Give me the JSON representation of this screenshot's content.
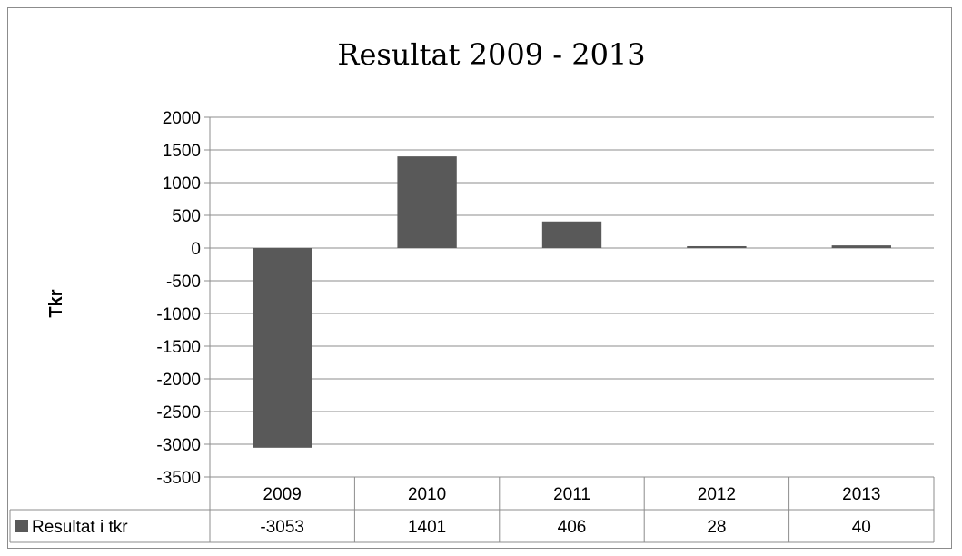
{
  "chart_data": {
    "type": "bar",
    "title": "Resultat 2009 - 2013",
    "xlabel": "",
    "ylabel": "Tkr",
    "categories": [
      "2009",
      "2010",
      "2011",
      "2012",
      "2013"
    ],
    "series": [
      {
        "name": "Resultat i tkr",
        "values": [
          -3053,
          1401,
          406,
          28,
          40
        ],
        "color": "#595959"
      }
    ],
    "ylim": [
      -3500,
      2000
    ],
    "yticks": [
      2000,
      1500,
      1000,
      500,
      0,
      -500,
      -1000,
      -1500,
      -2000,
      -2500,
      -3000,
      -3500
    ],
    "grid": true,
    "legend": "data-table",
    "data_table": true
  },
  "colors": {
    "bar": "#595959",
    "gridline": "#8c8c8c",
    "border": "#8c8c8c"
  }
}
